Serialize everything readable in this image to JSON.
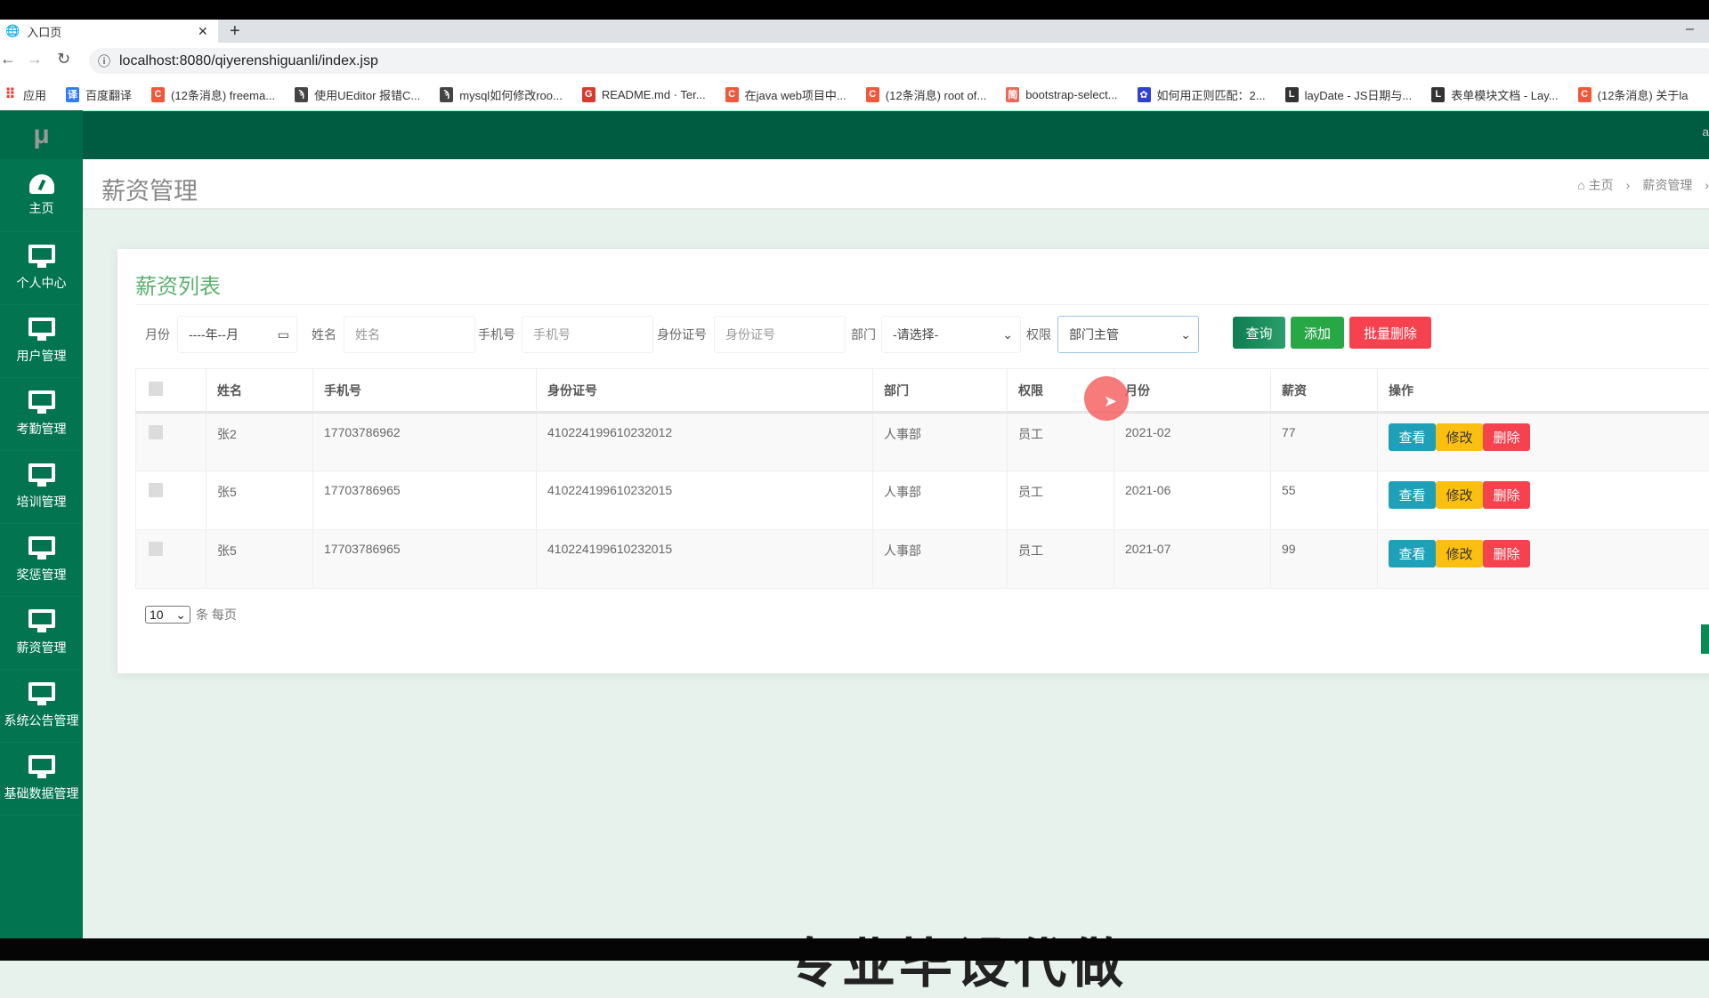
{
  "browser": {
    "tab_title": "入口页",
    "url": "localhost:8080/qiyerenshiguanli/index.jsp",
    "bookmarks": [
      {
        "label": "应用",
        "icon": "apps-grid",
        "color": "#e94235"
      },
      {
        "label": "百度翻译",
        "icon": "译",
        "color": "#2f7cf6"
      },
      {
        "label": "(12条消息) freema...",
        "icon": "C",
        "color": "#f0573b"
      },
      {
        "label": "使用UEditor 报错C...",
        "icon": "ϡ",
        "color": "#444"
      },
      {
        "label": "mysql如何修改roo...",
        "icon": "ϡ",
        "color": "#444"
      },
      {
        "label": "README.md · Ter...",
        "icon": "G",
        "color": "#d83a2f"
      },
      {
        "label": "在java web项目中...",
        "icon": "C",
        "color": "#f0573b"
      },
      {
        "label": "(12条消息) root of...",
        "icon": "C",
        "color": "#f0573b"
      },
      {
        "label": "bootstrap-select...",
        "icon": "简",
        "color": "#e9685a"
      },
      {
        "label": "如何用正则匹配：2...",
        "icon": "✿",
        "color": "#3040d0"
      },
      {
        "label": "layDate - JS日期与...",
        "icon": "L",
        "color": "#333"
      },
      {
        "label": "表单模块文档 - Lay...",
        "icon": "L",
        "color": "#333"
      },
      {
        "label": "(12条消息) 关于la",
        "icon": "C",
        "color": "#f0573b"
      }
    ]
  },
  "app": {
    "logo": "μ",
    "header_right": "a",
    "sidebar": [
      {
        "label": "主页",
        "icon": "dashboard-icon"
      },
      {
        "label": "个人中心",
        "icon": "monitor-icon"
      },
      {
        "label": "用户管理",
        "icon": "monitor-icon"
      },
      {
        "label": "考勤管理",
        "icon": "monitor-icon"
      },
      {
        "label": "培训管理",
        "icon": "monitor-icon"
      },
      {
        "label": "奖惩管理",
        "icon": "monitor-icon"
      },
      {
        "label": "薪资管理",
        "icon": "monitor-icon"
      },
      {
        "label": "系统公告管理",
        "icon": "monitor-icon"
      },
      {
        "label": "基础数据管理",
        "icon": "monitor-icon"
      }
    ],
    "page_title": "薪资管理",
    "breadcrumb": [
      "主页",
      "薪资管理"
    ],
    "card_title": "薪资列表",
    "filters": {
      "month_label": "月份",
      "month_value": "----年--月",
      "name_label": "姓名",
      "name_placeholder": "姓名",
      "phone_label": "手机号",
      "phone_placeholder": "手机号",
      "id_label": "身份证号",
      "id_placeholder": "身份证号",
      "dept_label": "部门",
      "dept_value": "-请选择-",
      "role_label": "权限",
      "role_value": "部门主管"
    },
    "buttons": {
      "search": "查询",
      "add": "添加",
      "batch_delete": "批量删除"
    },
    "colors": {
      "search": "#138a5a",
      "add": "#28a745",
      "danger": "#f5424e",
      "info": "#1ea1b8",
      "warning": "#fbbf10",
      "sidebar": "#027550",
      "header": "#005c40",
      "title": "#5cb06e"
    },
    "table": {
      "columns": [
        "姓名",
        "手机号",
        "身份证号",
        "部门",
        "权限",
        "月份",
        "薪资",
        "操作"
      ],
      "rows": [
        {
          "name": "张2",
          "phone": "17703786962",
          "id": "410224199610232012",
          "dept": "人事部",
          "role": "员工",
          "month": "2021-02",
          "salary": "77"
        },
        {
          "name": "张5",
          "phone": "17703786965",
          "id": "410224199610232015",
          "dept": "人事部",
          "role": "员工",
          "month": "2021-06",
          "salary": "55"
        },
        {
          "name": "张5",
          "phone": "17703786965",
          "id": "410224199610232015",
          "dept": "人事部",
          "role": "员工",
          "month": "2021-07",
          "salary": "99"
        }
      ],
      "actions": {
        "view": "查看",
        "edit": "修改",
        "delete": "删除"
      }
    },
    "pager": {
      "page_size": "10",
      "suffix": "条 每页"
    }
  },
  "watermark": "专业毕设代做"
}
